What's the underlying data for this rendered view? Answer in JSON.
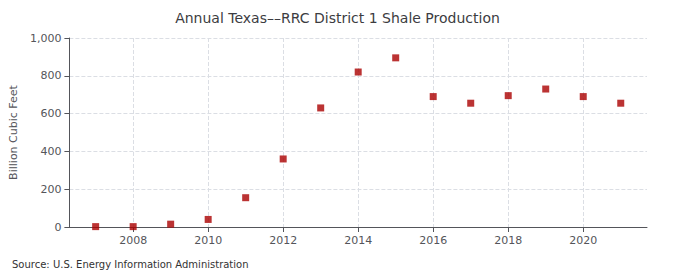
{
  "chart_data": {
    "type": "scatter",
    "title": "Annual Texas––RRC District 1 Shale Production",
    "ylabel": "Billion Cubic Feet",
    "source": "Source: U.S. Energy Information Administration",
    "x": [
      2007,
      2008,
      2009,
      2010,
      2011,
      2012,
      2013,
      2014,
      2015,
      2016,
      2017,
      2018,
      2019,
      2020,
      2021
    ],
    "values": [
      2,
      2,
      15,
      40,
      155,
      360,
      630,
      820,
      895,
      690,
      655,
      695,
      730,
      690,
      655
    ],
    "color": "#aa0000",
    "marker": "square",
    "xlim": [
      2006.3,
      2021.7
    ],
    "xticks": [
      2008,
      2010,
      2012,
      2014,
      2016,
      2018,
      2020
    ],
    "ylim": [
      0,
      1000
    ],
    "yticks": [
      0,
      200,
      400,
      600,
      800,
      {
        "value": 1000,
        "label": "1,000"
      }
    ],
    "grid": true
  }
}
